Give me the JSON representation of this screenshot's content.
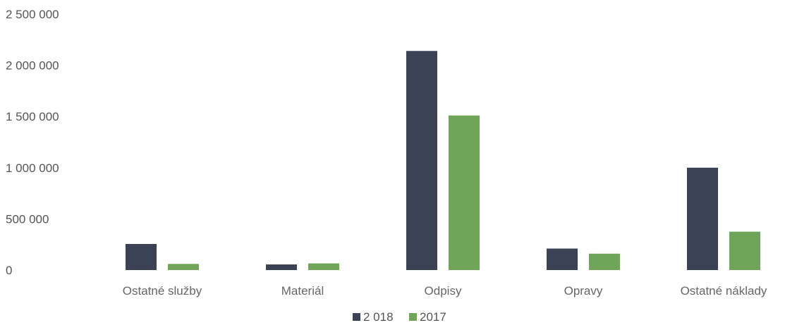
{
  "chart_data": {
    "type": "bar",
    "categories": [
      "Ostatné služby",
      "Materiál",
      "Odpisy",
      "Opravy",
      "Ostatné náklady"
    ],
    "series": [
      {
        "name": "2 018",
        "color": "#3b4256",
        "values": [
          255000,
          55000,
          2140000,
          210000,
          1000000
        ]
      },
      {
        "name": "2017",
        "color": "#6fa558",
        "values": [
          60000,
          65000,
          1510000,
          160000,
          375000
        ]
      }
    ],
    "y_ticks": [
      0,
      500000,
      1000000,
      1500000,
      2000000,
      2500000
    ],
    "y_tick_labels": [
      "0",
      "500 000",
      "1 000 000",
      "1 500 000",
      "2 000 000",
      "2 500 000"
    ],
    "ylim": [
      0,
      2500000
    ],
    "grid": false,
    "legend_position": "bottom-center"
  }
}
